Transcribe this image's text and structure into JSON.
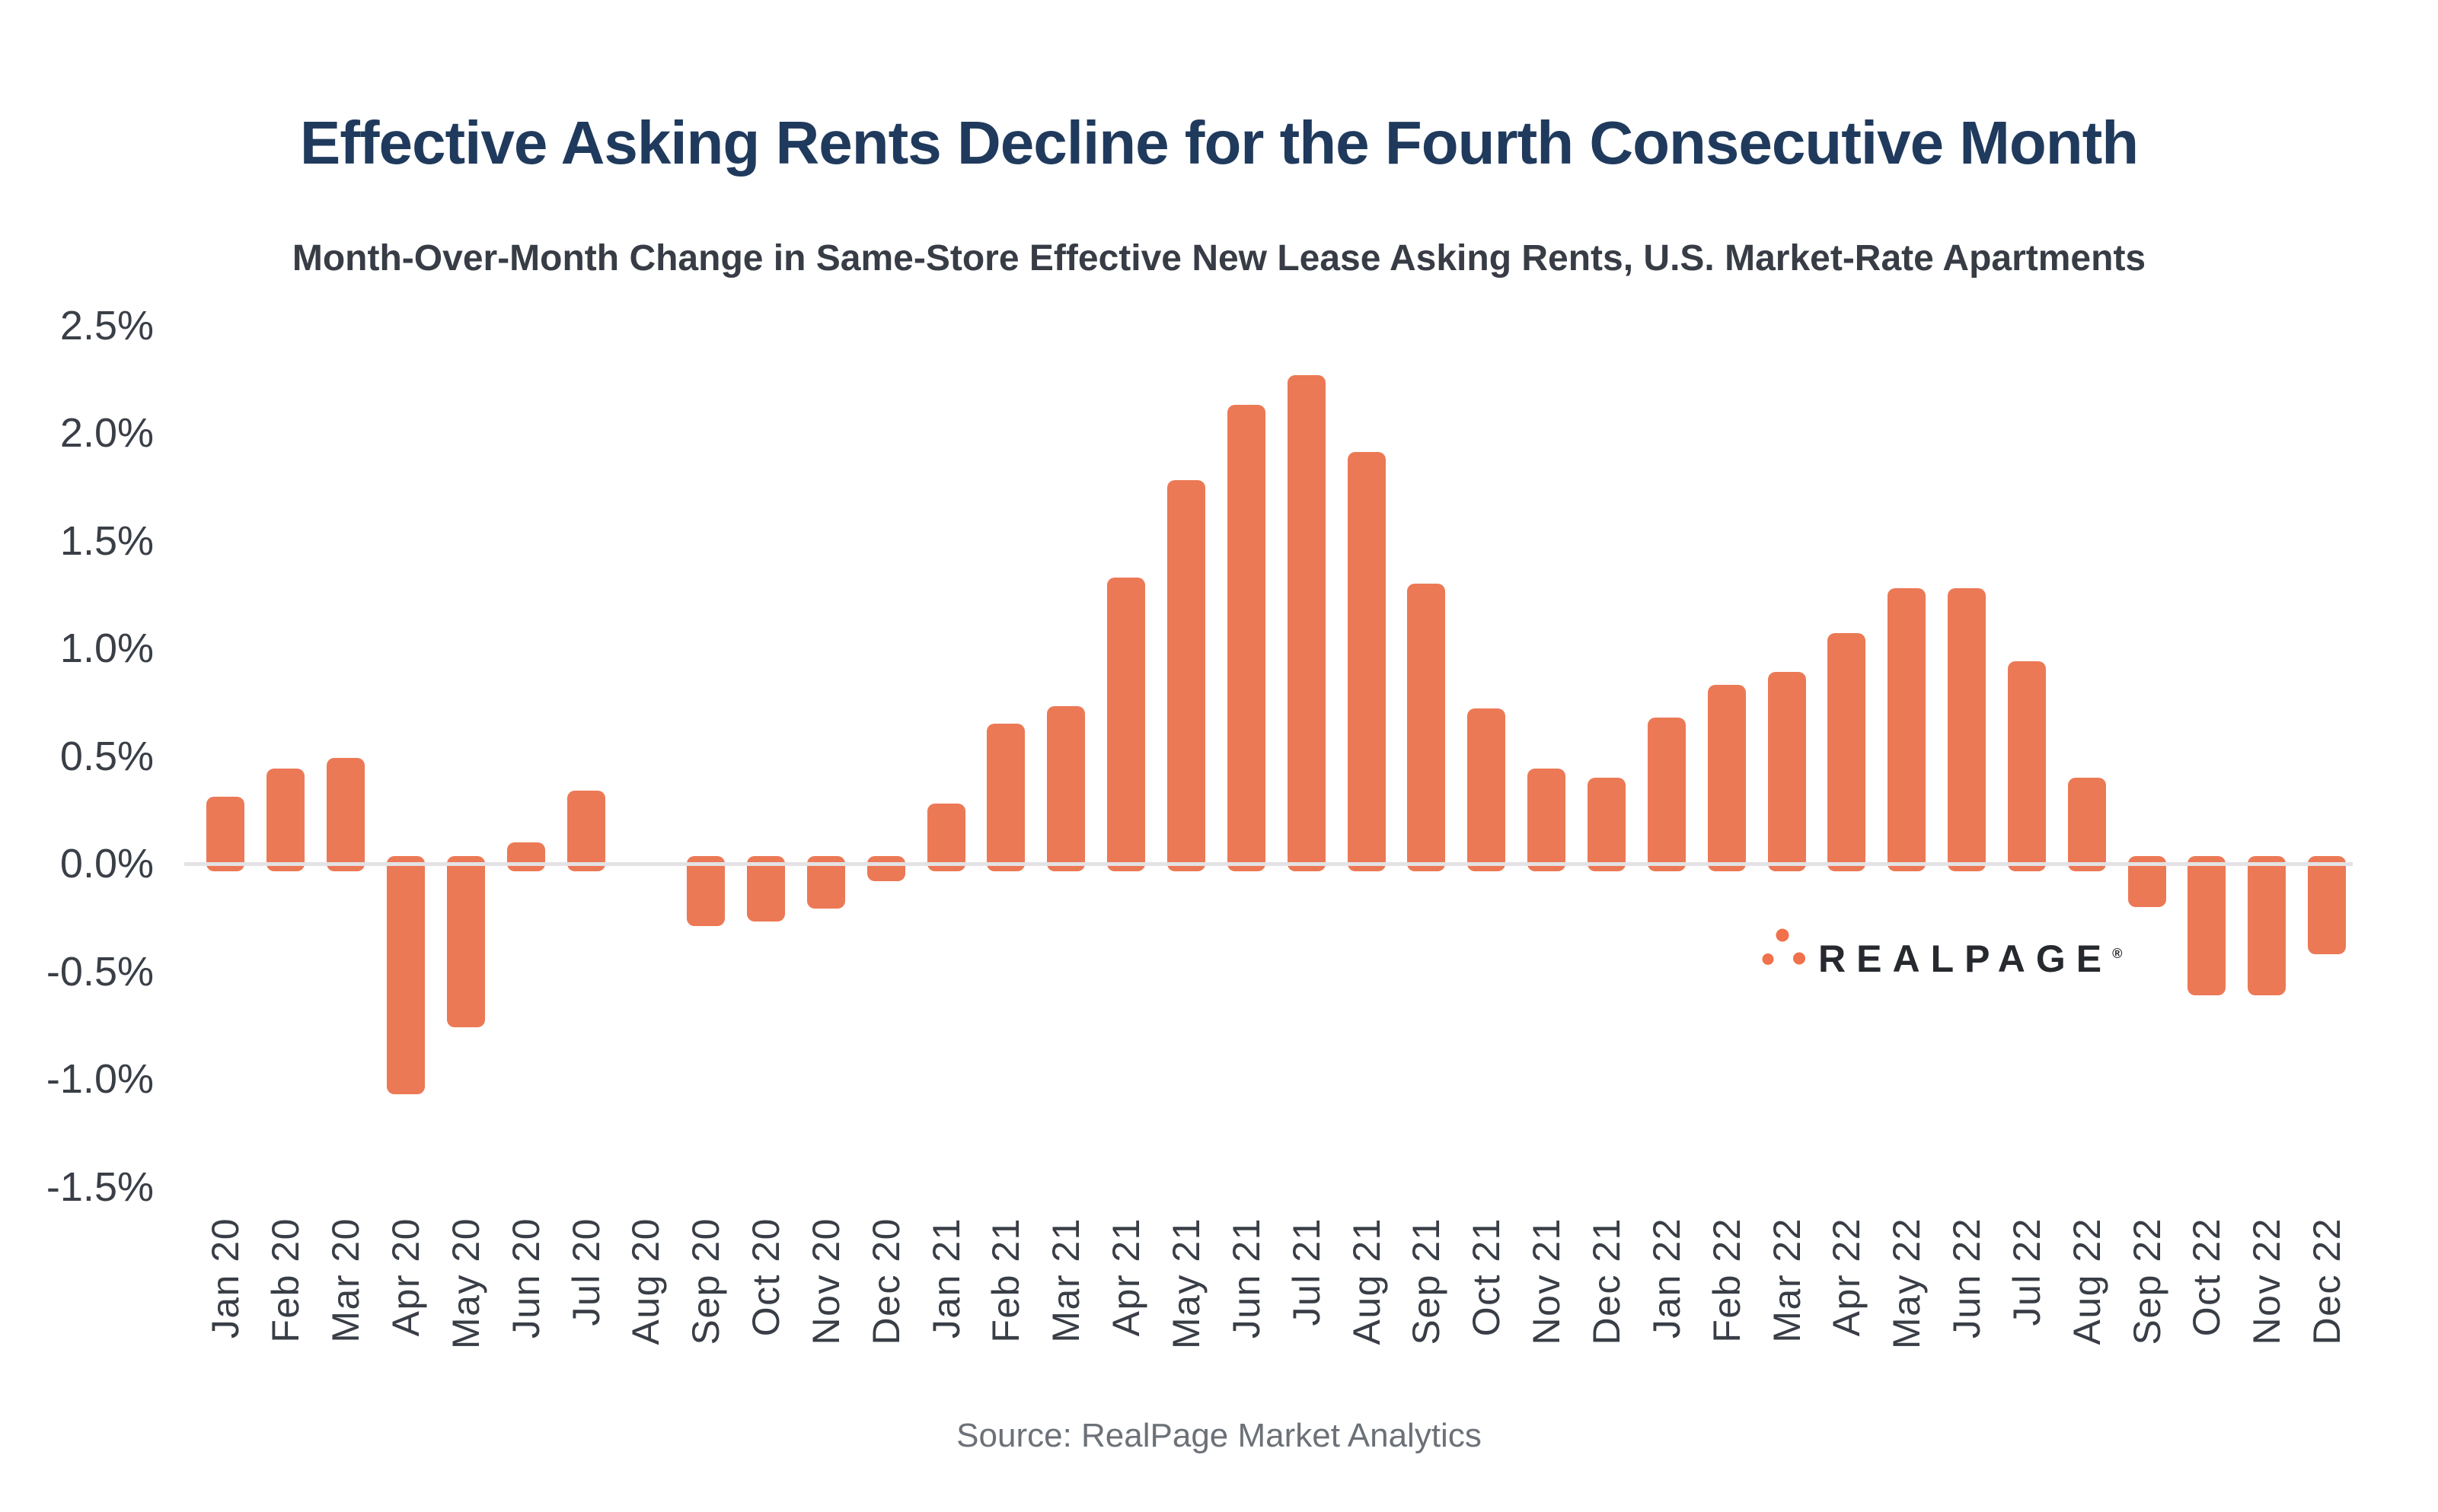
{
  "title": "Effective Asking Rents Decline for the Fourth Consecutive Month",
  "subtitle": "Month-Over-Month Change in Same-Store Effective New Lease Asking Rents, U.S. Market-Rate Apartments",
  "source": "Source: RealPage Market Analytics",
  "logo": {
    "text": "REALPAGE",
    "registered": "®",
    "dots_color": "#F0714B",
    "text_color": "#26292E"
  },
  "colors": {
    "bar": "#EC7956",
    "zero_line": "#E4E2E4",
    "title": "#1F3A5C",
    "subtitle": "#373C45",
    "axis_labels": "#3A3F47",
    "source_text": "#6C7177"
  },
  "y_axis": {
    "tick_labels": [
      "2.5%",
      "2.0%",
      "1.5%",
      "1.0%",
      "0.5%",
      "0.0%",
      "-0.5%",
      "-1.0%",
      "-1.5%"
    ]
  },
  "chart_data": {
    "type": "bar",
    "title": "Effective Asking Rents Decline for the Fourth Consecutive Month",
    "subtitle": "Month-Over-Month Change in Same-Store Effective New Lease Asking Rents, U.S. Market-Rate Apartments",
    "unit": "%",
    "categories": [
      "Jan 20",
      "Feb 20",
      "Mar 20",
      "Apr 20",
      "May 20",
      "Jun 20",
      "Jul 20",
      "Aug 20",
      "Sep 20",
      "Oct 20",
      "Nov 20",
      "Dec 20",
      "Jan 21",
      "Feb 21",
      "Mar 21",
      "Apr 21",
      "May 21",
      "Jun 21",
      "Jul 21",
      "Aug 21",
      "Sep 21",
      "Oct 21",
      "Nov 21",
      "Dec 21",
      "Jan 22",
      "Feb 22",
      "Mar 22",
      "Apr 22",
      "May 22",
      "Jun 22",
      "Jul 22",
      "Aug 22",
      "Sep 22",
      "Oct 22",
      "Nov 22",
      "Dec 22"
    ],
    "values": [
      0.31,
      0.44,
      0.49,
      -1.07,
      -0.76,
      0.1,
      0.34,
      0.0,
      -0.29,
      -0.27,
      -0.21,
      -0.08,
      0.28,
      0.65,
      0.73,
      1.33,
      1.78,
      2.13,
      2.27,
      1.91,
      1.3,
      0.72,
      0.44,
      0.4,
      0.68,
      0.83,
      0.89,
      1.07,
      1.28,
      1.28,
      0.94,
      0.4,
      -0.2,
      -0.61,
      -0.61,
      -0.42
    ],
    "xlabel": "",
    "ylabel": "",
    "ylim": [
      -1.5,
      2.5
    ],
    "yticks": [
      2.5,
      2.0,
      1.5,
      1.0,
      0.5,
      0.0,
      -0.5,
      -1.0,
      -1.5
    ],
    "grid": false,
    "legend": false,
    "bar_color": "#EC7956"
  }
}
